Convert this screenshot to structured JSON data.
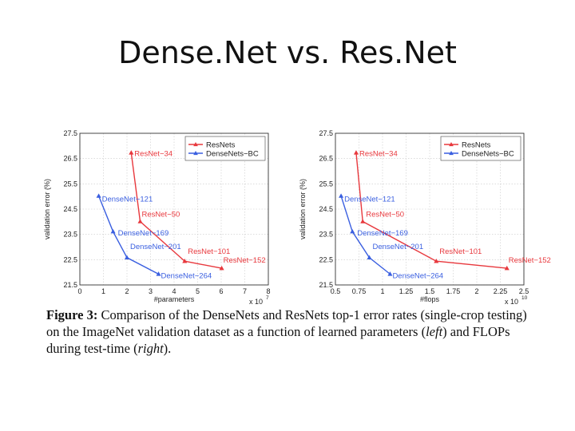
{
  "slide": {
    "title": "Dense.Net vs. Res.Net"
  },
  "chart_data": [
    {
      "type": "line",
      "xlabel": "#parameters",
      "ylabel": "validation error (%)",
      "x_multiplier": "x 10",
      "x_exponent": "7",
      "xlim": [
        0,
        8
      ],
      "ylim": [
        21.5,
        27.5
      ],
      "xticks": [
        0,
        1,
        2,
        3,
        4,
        5,
        6,
        7,
        8
      ],
      "xtick_labels": [
        "0",
        "1",
        "2",
        "3",
        "4",
        "5",
        "6",
        "7",
        "8"
      ],
      "yticks": [
        21.5,
        22.5,
        23.5,
        24.5,
        25.5,
        26.5,
        27.5
      ],
      "ytick_labels": [
        "21.5",
        "22.5",
        "23.5",
        "24.5",
        "25.5",
        "26.5",
        "27.5"
      ],
      "legend": [
        "ResNets",
        "DenseNets−BC"
      ],
      "series": [
        {
          "name": "ResNets",
          "color": "#e8383d",
          "x": [
            2.18,
            2.56,
            4.45,
            6.02
          ],
          "y": [
            26.73,
            24.01,
            22.44,
            22.16
          ],
          "labels": [
            "ResNet−34",
            "ResNet−50",
            "ResNet−101",
            "ResNet−152"
          ]
        },
        {
          "name": "DenseNets−BC",
          "color": "#3a5fe0",
          "x": [
            0.8,
            1.41,
            2.0,
            3.34
          ],
          "y": [
            25.02,
            23.61,
            22.58,
            21.93
          ],
          "labels": [
            "DenseNet−121",
            "DenseNet−169",
            "DenseNet−201",
            "DenseNet−264"
          ]
        }
      ]
    },
    {
      "type": "line",
      "xlabel": "#flops",
      "ylabel": "validation error (%)",
      "x_multiplier": "x 10",
      "x_exponent": "10",
      "xlim": [
        0.5,
        2.5
      ],
      "ylim": [
        21.5,
        27.5
      ],
      "xticks": [
        0.5,
        0.75,
        1.0,
        1.25,
        1.5,
        1.75,
        2.0,
        2.25,
        2.5
      ],
      "xtick_labels": [
        "0.5",
        "0.75",
        "1",
        "1.25",
        "1.5",
        "1.75",
        "2",
        "2.25",
        "2.5"
      ],
      "yticks": [
        21.5,
        22.5,
        23.5,
        24.5,
        25.5,
        26.5,
        27.5
      ],
      "ytick_labels": [
        "21.5",
        "22.5",
        "23.5",
        "24.5",
        "25.5",
        "26.5",
        "27.5"
      ],
      "legend": [
        "ResNets",
        "DenseNets−BC"
      ],
      "series": [
        {
          "name": "ResNets",
          "color": "#e8383d",
          "x": [
            0.72,
            0.79,
            1.57,
            2.32
          ],
          "y": [
            26.73,
            24.01,
            22.44,
            22.16
          ],
          "labels": [
            "ResNet−34",
            "ResNet−50",
            "ResNet−101",
            "ResNet−152"
          ]
        },
        {
          "name": "DenseNets−BC",
          "color": "#3a5fe0",
          "x": [
            0.56,
            0.68,
            0.86,
            1.08
          ],
          "y": [
            25.02,
            23.61,
            22.58,
            21.93
          ],
          "labels": [
            "DenseNet−121",
            "DenseNet−169",
            "DenseNet−201",
            "DenseNet−264"
          ]
        }
      ]
    }
  ],
  "caption": {
    "figure_label": "Figure 3:",
    "text_1": " Comparison of the DenseNets and ResNets top-1 error rates (single-crop testing) on the ImageNet validation dataset as a function of learned parameters (",
    "left_word": "left",
    "text_2": ") and FLOPs during test-time (",
    "right_word": "right",
    "text_3": ")."
  }
}
